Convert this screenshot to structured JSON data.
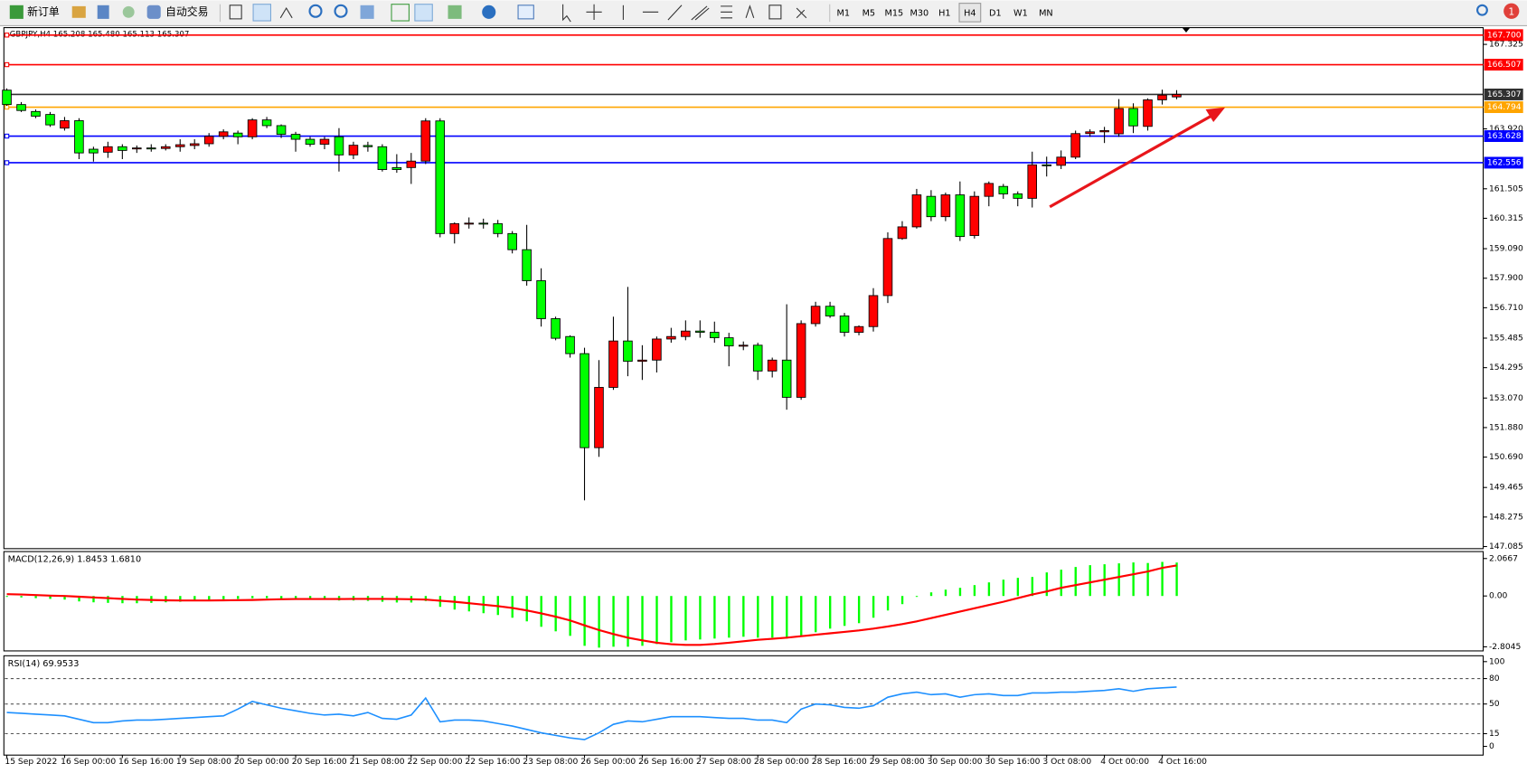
{
  "toolbar": {
    "new_order": "新订单",
    "auto_trading": "自动交易",
    "timeframes": [
      "M1",
      "M5",
      "M15",
      "M30",
      "H1",
      "H4",
      "D1",
      "W1",
      "MN"
    ],
    "selected": "H4",
    "notifications": 1
  },
  "chart_data": [
    {
      "type": "candlestick",
      "title": "GBPJPY,H4  165.208 165.480 165.113 165.307",
      "categories": [
        "15 Sep 2022",
        null,
        null,
        null,
        "16 Sep 00:00",
        null,
        null,
        null,
        "16 Sep 16:00",
        null,
        null,
        null,
        "19 Sep 08:00",
        null,
        null,
        null,
        "20 Sep 00:00",
        null,
        null,
        null,
        "20 Sep 16:00",
        null,
        null,
        null,
        "21 Sep 08:00",
        null,
        null,
        null,
        "22 Sep 00:00",
        null,
        null,
        null,
        "22 Sep 16:00",
        null,
        null,
        null,
        "23 Sep 08:00",
        null,
        null,
        null,
        "26 Sep 00:00",
        null,
        null,
        null,
        "26 Sep 16:00",
        null,
        null,
        null,
        "27 Sep 08:00",
        null,
        null,
        null,
        "28 Sep 00:00",
        null,
        null,
        null,
        "28 Sep 16:00",
        null,
        null,
        null,
        "29 Sep 08:00",
        null,
        null,
        null,
        "30 Sep 00:00",
        null,
        null,
        null,
        "30 Sep 16:00",
        null,
        null,
        null,
        "3 Oct 08:00",
        null,
        null,
        null,
        "4 Oct 00:00",
        null,
        null,
        null,
        "4 Oct 16:00",
        null
      ],
      "open": [
        165.48,
        164.9,
        164.62,
        164.5,
        163.95,
        164.25,
        163.1,
        162.98,
        163.2,
        163.12,
        163.15,
        163.13,
        163.2,
        163.25,
        163.32,
        163.62,
        163.75,
        163.6,
        164.28,
        164.05,
        163.7,
        163.5,
        163.3,
        163.6,
        162.87,
        163.25,
        163.2,
        162.36,
        162.36,
        162.62,
        164.24,
        159.7,
        160.1,
        160.12,
        160.1,
        159.7,
        159.05,
        157.8,
        156.27,
        155.55,
        154.86,
        151.07,
        153.5,
        155.37,
        154.55,
        154.6,
        155.45,
        155.55,
        155.77,
        155.72,
        155.5,
        155.17,
        155.2,
        154.16,
        154.6,
        153.1,
        156.07,
        156.77,
        156.38,
        155.72,
        155.95,
        157.2,
        159.5,
        159.97,
        161.2,
        160.38,
        161.26,
        159.62,
        161.2,
        161.6,
        161.3,
        161.12,
        162.47,
        162.45,
        162.78,
        163.73,
        163.8,
        163.72,
        164.74,
        164.02,
        165.09,
        165.208
      ],
      "high": [
        165.55,
        165.0,
        164.7,
        164.6,
        164.4,
        164.35,
        163.2,
        163.4,
        163.3,
        163.25,
        163.3,
        163.3,
        163.5,
        163.5,
        163.75,
        163.9,
        163.85,
        164.35,
        164.4,
        164.1,
        163.8,
        163.6,
        163.6,
        163.95,
        163.4,
        163.4,
        163.3,
        162.9,
        162.95,
        164.35,
        164.35,
        160.15,
        160.35,
        160.3,
        160.25,
        159.8,
        160.05,
        158.3,
        156.35,
        155.6,
        155.1,
        154.6,
        156.35,
        157.55,
        155.2,
        155.55,
        155.9,
        156.2,
        156.2,
        156.15,
        155.7,
        155.35,
        155.3,
        154.7,
        156.85,
        156.2,
        156.95,
        156.95,
        156.5,
        156.0,
        157.5,
        159.75,
        160.2,
        161.5,
        161.45,
        161.35,
        161.8,
        161.4,
        161.8,
        161.7,
        161.4,
        163.0,
        162.8,
        163.05,
        163.85,
        163.9,
        164.0,
        165.12,
        164.95,
        165.15,
        165.5,
        165.48
      ],
      "low": [
        164.85,
        164.6,
        164.35,
        164.0,
        163.85,
        162.7,
        162.6,
        162.75,
        162.7,
        162.95,
        163.0,
        163.05,
        163.0,
        163.1,
        163.2,
        163.5,
        163.3,
        163.5,
        163.95,
        163.55,
        163.0,
        163.2,
        163.1,
        162.2,
        162.7,
        163.0,
        162.2,
        162.15,
        161.7,
        162.5,
        159.55,
        159.3,
        159.9,
        159.9,
        159.55,
        158.9,
        157.6,
        155.95,
        155.4,
        154.7,
        148.95,
        150.7,
        153.4,
        153.95,
        153.8,
        154.1,
        155.3,
        155.4,
        155.5,
        155.3,
        154.35,
        155.0,
        153.8,
        153.9,
        152.6,
        153.0,
        155.95,
        156.3,
        155.55,
        155.6,
        155.75,
        156.9,
        159.45,
        159.9,
        160.2,
        160.2,
        159.4,
        159.5,
        160.8,
        161.1,
        160.8,
        160.75,
        162.0,
        162.3,
        162.7,
        163.6,
        163.35,
        163.6,
        163.75,
        163.85,
        164.9,
        165.113
      ],
      "close": [
        164.9,
        164.66,
        164.43,
        164.08,
        164.25,
        162.95,
        162.95,
        163.2,
        163.05,
        163.15,
        163.12,
        163.2,
        163.28,
        163.32,
        163.62,
        163.8,
        163.6,
        164.28,
        164.05,
        163.7,
        163.5,
        163.3,
        163.5,
        162.87,
        163.26,
        163.2,
        162.28,
        162.28,
        162.62,
        164.24,
        159.7,
        160.1,
        160.12,
        160.1,
        159.7,
        159.05,
        157.8,
        156.27,
        155.48,
        154.86,
        151.07,
        153.5,
        155.37,
        154.55,
        154.6,
        155.45,
        155.55,
        155.77,
        155.72,
        155.5,
        155.17,
        155.2,
        154.16,
        154.6,
        153.1,
        156.07,
        156.77,
        156.38,
        155.72,
        155.95,
        157.2,
        159.5,
        159.97,
        161.26,
        160.38,
        161.26,
        159.58,
        161.2,
        161.72,
        161.3,
        161.12,
        162.47,
        162.45,
        162.78,
        163.73,
        163.8,
        163.85,
        164.74,
        164.04,
        165.09,
        165.28,
        165.307
      ],
      "up_color": "#ff0000",
      "down_color": "#00ff00",
      "ylim": [
        147.0,
        168.0
      ],
      "yticks": [
        167.325,
        {
          "value": 163.92,
          "label": "163.920"
        },
        161.505,
        160.315,
        {
          "value": 159.09,
          "label": "159.090"
        },
        {
          "value": 157.9,
          "label": "157.900"
        },
        {
          "value": 156.71,
          "label": "156.710"
        },
        155.485,
        154.295,
        {
          "value": 153.07,
          "label": "153.070"
        },
        {
          "value": 151.88,
          "label": "151.880"
        },
        {
          "value": 150.69,
          "label": "150.690"
        },
        149.465,
        148.275,
        147.085
      ],
      "hlines": [
        {
          "value": 167.7,
          "label": "167.700",
          "color": "#ff0000"
        },
        {
          "value": 166.507,
          "label": "166.507",
          "color": "#ff0000"
        },
        {
          "value": 165.307,
          "label": "165.307",
          "color": "#303030"
        },
        {
          "value": 164.794,
          "label": "164.794",
          "color": "#ffa500"
        },
        {
          "value": 163.628,
          "label": "163.628",
          "color": "#0000ff"
        },
        {
          "value": 162.556,
          "label": "162.556",
          "color": "#0000ff"
        }
      ]
    },
    {
      "type": "macd",
      "title": "MACD(12,26,9) 1.8453 1.6810",
      "histogram": {
        "color": "#00ff00",
        "values": [
          -0.05,
          -0.08,
          -0.12,
          -0.16,
          -0.2,
          -0.3,
          -0.35,
          -0.38,
          -0.4,
          -0.4,
          -0.38,
          -0.35,
          -0.32,
          -0.28,
          -0.22,
          -0.18,
          -0.16,
          -0.12,
          -0.12,
          -0.14,
          -0.16,
          -0.18,
          -0.2,
          -0.25,
          -0.25,
          -0.27,
          -0.32,
          -0.36,
          -0.36,
          -0.28,
          -0.6,
          -0.75,
          -0.85,
          -0.95,
          -1.05,
          -1.2,
          -1.4,
          -1.7,
          -1.95,
          -2.2,
          -2.75,
          -2.85,
          -2.8,
          -2.8,
          -2.75,
          -2.65,
          -2.55,
          -2.45,
          -2.4,
          -2.35,
          -2.3,
          -2.25,
          -2.3,
          -2.3,
          -2.35,
          -2.2,
          -2.0,
          -1.8,
          -1.65,
          -1.5,
          -1.2,
          -0.8,
          -0.45,
          -0.05,
          0.2,
          0.35,
          0.45,
          0.6,
          0.75,
          0.9,
          1.0,
          1.05,
          1.3,
          1.45,
          1.6,
          1.7,
          1.75,
          1.8,
          1.85,
          1.82,
          1.88,
          1.8453
        ]
      },
      "signal": {
        "color": "#ff0000",
        "values": [
          0.1,
          0.08,
          0.05,
          0.02,
          0.0,
          -0.04,
          -0.08,
          -0.12,
          -0.16,
          -0.2,
          -0.22,
          -0.24,
          -0.25,
          -0.25,
          -0.25,
          -0.24,
          -0.23,
          -0.22,
          -0.2,
          -0.18,
          -0.17,
          -0.17,
          -0.17,
          -0.17,
          -0.16,
          -0.16,
          -0.16,
          -0.17,
          -0.18,
          -0.2,
          -0.26,
          -0.32,
          -0.4,
          -0.48,
          -0.56,
          -0.66,
          -0.8,
          -0.96,
          -1.14,
          -1.35,
          -1.62,
          -1.88,
          -2.1,
          -2.3,
          -2.45,
          -2.58,
          -2.66,
          -2.7,
          -2.7,
          -2.65,
          -2.58,
          -2.5,
          -2.42,
          -2.36,
          -2.3,
          -2.22,
          -2.14,
          -2.06,
          -1.98,
          -1.9,
          -1.8,
          -1.68,
          -1.55,
          -1.4,
          -1.22,
          -1.04,
          -0.86,
          -0.68,
          -0.5,
          -0.32,
          -0.12,
          0.08,
          0.25,
          0.45,
          0.6,
          0.75,
          0.9,
          1.05,
          1.2,
          1.35,
          1.55,
          1.681
        ]
      },
      "ylim": [
        -3.03,
        2.45
      ],
      "yticks": [
        2.0667,
        {
          "value": 0,
          "label": "0.00"
        },
        -2.8045
      ]
    },
    {
      "type": "line",
      "title": "RSI(14) 69.9533",
      "color": "#1e90ff",
      "values": [
        40,
        39,
        38,
        37,
        36,
        32,
        28,
        28,
        30,
        31,
        31,
        32,
        33,
        34,
        35,
        36,
        44,
        53,
        49,
        45,
        42,
        39,
        37,
        38,
        36,
        40,
        33,
        32,
        37,
        57,
        29,
        31,
        31,
        30,
        27,
        24,
        20,
        16,
        13,
        10,
        8,
        16,
        26,
        30,
        29,
        32,
        35,
        35,
        35,
        34,
        33,
        33,
        31,
        31,
        28,
        44,
        50,
        49,
        46,
        45,
        48,
        58,
        62,
        64,
        61,
        62,
        58,
        61,
        62,
        60,
        60,
        63,
        63,
        64,
        64,
        65,
        66,
        68,
        65,
        68,
        69,
        69.9533
      ],
      "ylim": [
        -10.3,
        106.9
      ],
      "yticks": [
        100,
        80,
        50,
        15,
        0
      ],
      "levels": [
        80,
        50,
        15
      ]
    }
  ]
}
